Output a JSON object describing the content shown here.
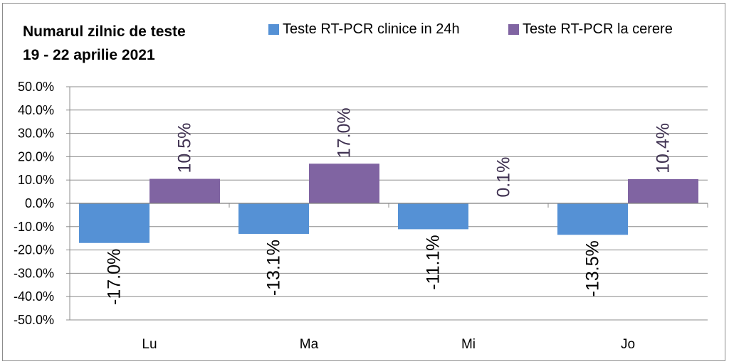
{
  "chart_data": {
    "type": "bar",
    "title_lines": [
      "Numarul zilnic de teste",
      "19 - 22 aprilie 2021"
    ],
    "categories": [
      "Lu",
      "Ma",
      "Mi",
      "Jo"
    ],
    "series": [
      {
        "name": "Teste RT-PCR clinice in 24h",
        "color": "#5591d5",
        "values": [
          -17.0,
          -13.1,
          -11.1,
          -13.5
        ],
        "labels": [
          "-17.0%",
          "-13.1%",
          "-11.1%",
          "-13.5%"
        ],
        "label_color": "#000000"
      },
      {
        "name": "Teste RT-PCR la cerere",
        "color": "#8064a2",
        "values": [
          10.5,
          17.0,
          0.1,
          10.4
        ],
        "labels": [
          "10.5%",
          "17.0%",
          "0.1%",
          "10.4%"
        ],
        "label_color": "#3f3151"
      }
    ],
    "y_ticks": [
      50,
      40,
      30,
      20,
      10,
      0,
      -10,
      -20,
      -30,
      -40,
      -50
    ],
    "y_tick_labels": [
      "50.0%",
      "40.0%",
      "30.0%",
      "20.0%",
      "10.0%",
      "0.0%",
      "-10.0%",
      "-20.0%",
      "-30.0%",
      "-40.0%",
      "-50.0%"
    ],
    "ylim": [
      -50,
      50
    ],
    "xlabel": "",
    "ylabel": "",
    "grid": true,
    "legend_position": "top"
  }
}
